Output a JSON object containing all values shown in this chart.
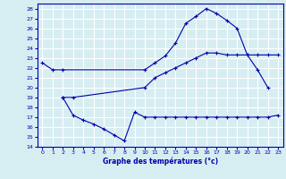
{
  "background_color": "#d6eef2",
  "grid_color": "#ffffff",
  "line_color": "#0000aa",
  "xlabel": "Graphe des températures (°c)",
  "xlim": [
    -0.5,
    23.5
  ],
  "ylim": [
    14,
    28.5
  ],
  "yticks": [
    14,
    15,
    16,
    17,
    18,
    19,
    20,
    21,
    22,
    23,
    24,
    25,
    26,
    27,
    28
  ],
  "xticks": [
    0,
    1,
    2,
    3,
    4,
    5,
    6,
    7,
    8,
    9,
    10,
    11,
    12,
    13,
    14,
    15,
    16,
    17,
    18,
    19,
    20,
    21,
    22,
    23
  ],
  "line_top_x": [
    0,
    1,
    2,
    10,
    11,
    12,
    13,
    14,
    15,
    16,
    17,
    18,
    19,
    20,
    21,
    22
  ],
  "line_top_y": [
    22.5,
    21.8,
    21.8,
    21.8,
    22.5,
    23.2,
    24.5,
    26.5,
    27.2,
    28.0,
    27.5,
    26.8,
    26.0,
    23.3,
    21.8,
    20.0
  ],
  "line_mid_x": [
    2,
    3,
    10,
    11,
    12,
    13,
    14,
    15,
    16,
    17,
    18,
    19,
    20,
    21,
    22,
    23
  ],
  "line_mid_y": [
    19.0,
    19.0,
    20.0,
    21.0,
    21.5,
    22.0,
    22.5,
    23.0,
    23.5,
    23.5,
    23.3,
    23.3,
    23.3,
    23.3,
    23.3,
    23.3
  ],
  "line_bot_x": [
    2,
    3,
    4,
    5,
    6,
    7,
    8,
    9,
    10,
    11,
    12,
    13,
    14,
    15,
    16,
    17,
    18,
    19,
    20,
    21,
    22,
    23
  ],
  "line_bot_y": [
    19.0,
    17.2,
    16.7,
    16.3,
    15.8,
    15.2,
    14.6,
    17.5,
    17.0,
    17.0,
    17.0,
    17.0,
    17.0,
    17.0,
    17.0,
    17.0,
    17.0,
    17.0,
    17.0,
    17.0,
    17.0,
    17.2
  ]
}
